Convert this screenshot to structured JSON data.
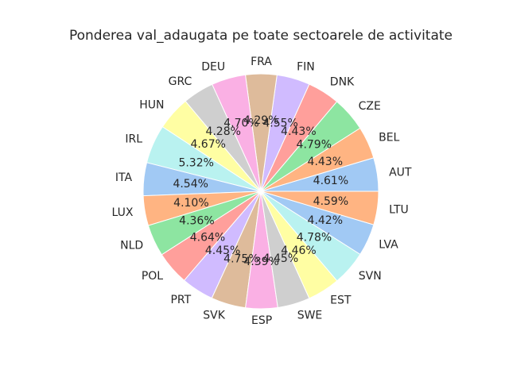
{
  "chart_data": {
    "type": "pie",
    "title": "Ponderea val_adaugata pe toate sectoarele de activitate",
    "categories": [
      "AUT",
      "BEL",
      "CZE",
      "DNK",
      "FIN",
      "FRA",
      "DEU",
      "GRC",
      "HUN",
      "IRL",
      "ITA",
      "LUX",
      "NLD",
      "POL",
      "PRT",
      "SVK",
      "ESP",
      "SWE",
      "EST",
      "SVN",
      "LVA",
      "LTU"
    ],
    "values": [
      4.61,
      4.43,
      4.79,
      4.43,
      4.55,
      4.29,
      4.7,
      4.28,
      4.67,
      5.32,
      4.54,
      4.1,
      4.36,
      4.64,
      4.45,
      4.75,
      4.39,
      4.45,
      4.46,
      4.78,
      4.42,
      4.59
    ],
    "value_labels": [
      "4.61%",
      "4.43%",
      "4.79%",
      "4.43%",
      "4.55%",
      "4.29%",
      "4.70%",
      "4.28%",
      "4.67%",
      "5.32%",
      "4.54%",
      "4.10%",
      "4.36%",
      "4.64%",
      "4.45%",
      "4.75%",
      "4.39%",
      "4.45%",
      "4.46%",
      "4.78%",
      "4.42%",
      "4.59%"
    ],
    "colors": [
      "#a1c9f4",
      "#ffb482",
      "#8de5a1",
      "#ff9f9b",
      "#d0bbff",
      "#debb9b",
      "#fab0e4",
      "#cfcfcf",
      "#fffea3",
      "#b9f2f0"
    ],
    "start_angle_deg": 0,
    "direction": "counterclockwise",
    "legend": "none"
  }
}
